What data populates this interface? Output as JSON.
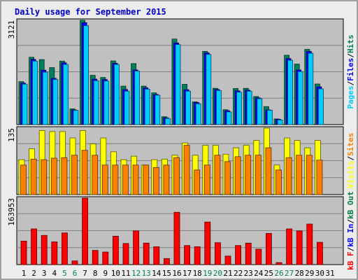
{
  "title": "Daily usage for September 2015",
  "colors": {
    "background": "#c0c0c0",
    "pages": "#00ccff",
    "files": "#0000ff",
    "hits": "#00805f",
    "visits": "#ffff00",
    "sites": "#ff8000",
    "kbf": "#ff0000",
    "kbin": "#0000ff",
    "kbout": "#008040",
    "weekend_label": "#00805f",
    "weekday_label": "#000000"
  },
  "chart_data": [
    {
      "type": "bar",
      "panel": "hits-files-pages",
      "title": "Daily usage for September 2015",
      "categories": [
        "1",
        "2",
        "3",
        "4",
        "5",
        "6",
        "7",
        "8",
        "9",
        "10",
        "11",
        "12",
        "13",
        "14",
        "15",
        "16",
        "17",
        "18",
        "19",
        "20",
        "21",
        "22",
        "23",
        "24",
        "25",
        "26",
        "27",
        "28",
        "29",
        "30",
        "31"
      ],
      "weekend_days": [
        5,
        6,
        12,
        13,
        19,
        20,
        26,
        27
      ],
      "ymax_label": "3121",
      "ylim": [
        0,
        3121
      ],
      "ylabel_parts": [
        "Pages",
        "/",
        "Files",
        "/",
        "Hits"
      ],
      "series": [
        {
          "name": "Hits",
          "values": [
            1285,
            2015,
            1945,
            1705,
            1900,
            470,
            3121,
            1475,
            1410,
            1905,
            1150,
            1825,
            1150,
            950,
            235,
            2560,
            1205,
            680,
            2190,
            1085,
            445,
            1080,
            1085,
            840,
            540,
            170,
            2075,
            1810,
            2250,
            1215,
            0
          ]
        },
        {
          "name": "Files",
          "values": [
            1240,
            1950,
            1630,
            1385,
            1850,
            440,
            3050,
            1360,
            1350,
            1835,
            1050,
            1635,
            1100,
            900,
            205,
            2445,
            1045,
            660,
            2145,
            1050,
            415,
            1010,
            1030,
            800,
            440,
            160,
            1975,
            1635,
            2190,
            1130,
            0
          ]
        },
        {
          "name": "Pages",
          "values": [
            1210,
            1900,
            1570,
            1350,
            1800,
            425,
            2960,
            1315,
            1305,
            1800,
            1000,
            1600,
            1060,
            880,
            185,
            2395,
            1000,
            625,
            2100,
            1020,
            380,
            970,
            1000,
            775,
            430,
            140,
            1925,
            1585,
            2135,
            1070,
            0
          ]
        }
      ]
    },
    {
      "type": "bar",
      "panel": "visits-sites",
      "categories": [
        "1",
        "2",
        "3",
        "4",
        "5",
        "6",
        "7",
        "8",
        "9",
        "10",
        "11",
        "12",
        "13",
        "14",
        "15",
        "16",
        "17",
        "18",
        "19",
        "20",
        "21",
        "22",
        "23",
        "24",
        "25",
        "26",
        "27",
        "28",
        "29",
        "30",
        "31"
      ],
      "ymax_label": "135",
      "ylim": [
        0,
        135
      ],
      "ylabel_parts": [
        "Visits",
        "/",
        "Sites"
      ],
      "series": [
        {
          "name": "Visits",
          "values": [
            71,
            93,
            130,
            128,
            128,
            115,
            130,
            103,
            115,
            87,
            71,
            78,
            60,
            71,
            72,
            80,
            105,
            80,
            100,
            100,
            82,
            95,
            100,
            110,
            135,
            60,
            115,
            110,
            95,
            110,
            0
          ]
        },
        {
          "name": "Sites",
          "values": [
            60,
            72,
            71,
            74,
            75,
            80,
            90,
            80,
            60,
            60,
            60,
            60,
            60,
            55,
            60,
            75,
            100,
            50,
            60,
            80,
            67,
            77,
            80,
            80,
            95,
            50,
            75,
            80,
            80,
            70,
            0
          ]
        }
      ]
    },
    {
      "type": "bar",
      "panel": "kbytes",
      "categories": [
        "1",
        "2",
        "3",
        "4",
        "5",
        "6",
        "7",
        "8",
        "9",
        "10",
        "11",
        "12",
        "13",
        "14",
        "15",
        "16",
        "17",
        "18",
        "19",
        "20",
        "21",
        "22",
        "23",
        "24",
        "25",
        "26",
        "27",
        "28",
        "29",
        "30",
        "31"
      ],
      "ymax_label": "163953",
      "ylim": [
        0,
        163953
      ],
      "ylabel_parts": [
        "kB F",
        "/",
        "kB In",
        "/",
        "kB Out"
      ],
      "series": [
        {
          "name": "kB F",
          "values": [
            58000,
            88000,
            72000,
            56000,
            78000,
            9000,
            163953,
            35000,
            31000,
            70000,
            52000,
            83000,
            53000,
            44000,
            15000,
            129000,
            47000,
            44000,
            105000,
            54000,
            21000,
            47000,
            53000,
            38000,
            77000,
            5000,
            88000,
            83000,
            100000,
            55000,
            0
          ]
        }
      ]
    }
  ]
}
